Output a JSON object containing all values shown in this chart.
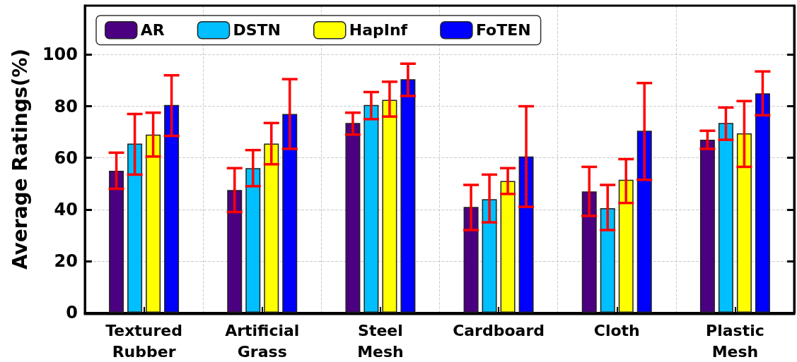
{
  "chart_data": {
    "type": "bar",
    "ylabel": "Average Ratings(%)",
    "categories": [
      "Textured Rubber",
      "Artificial Grass",
      "Steel Mesh",
      "Cardboard",
      "Cloth",
      "Plastic Mesh"
    ],
    "series": [
      {
        "name": "AR",
        "color": "#4b0082",
        "values": [
          55,
          47.5,
          73.5,
          41,
          47,
          67
        ],
        "errors": [
          [
            48,
            62
          ],
          [
            39,
            56
          ],
          [
            69,
            77.5
          ],
          [
            32,
            49.5
          ],
          [
            37.5,
            56.5
          ],
          [
            63.5,
            70.5
          ]
        ]
      },
      {
        "name": "DSTN",
        "color": "#00bfff",
        "values": [
          65.5,
          56,
          80.5,
          44,
          40.5,
          73.5
        ],
        "errors": [
          [
            53.5,
            77
          ],
          [
            49,
            63
          ],
          [
            75,
            85.5
          ],
          [
            35,
            53.5
          ],
          [
            32,
            49.5
          ],
          [
            67,
            79.5
          ]
        ]
      },
      {
        "name": "HapInf",
        "color": "#ffff00",
        "values": [
          69,
          65.5,
          82.5,
          51,
          51.5,
          69.5
        ],
        "errors": [
          [
            60.5,
            77.5
          ],
          [
            57.5,
            73.5
          ],
          [
            76,
            89.5
          ],
          [
            46,
            56
          ],
          [
            42.5,
            59.5
          ],
          [
            56.5,
            82
          ]
        ]
      },
      {
        "name": "FoTEN",
        "color": "#0000ff",
        "values": [
          80.5,
          77,
          90.5,
          60.5,
          70.5,
          85
        ],
        "errors": [
          [
            68.5,
            92
          ],
          [
            63.5,
            90.5
          ],
          [
            84,
            96.5
          ],
          [
            41,
            80
          ],
          [
            51.5,
            89
          ],
          [
            76.5,
            93.5
          ]
        ]
      }
    ],
    "ylim": [
      0,
      119
    ],
    "yticks": [
      0,
      20,
      40,
      60,
      80,
      100
    ],
    "grid": true,
    "legend": "top left"
  }
}
